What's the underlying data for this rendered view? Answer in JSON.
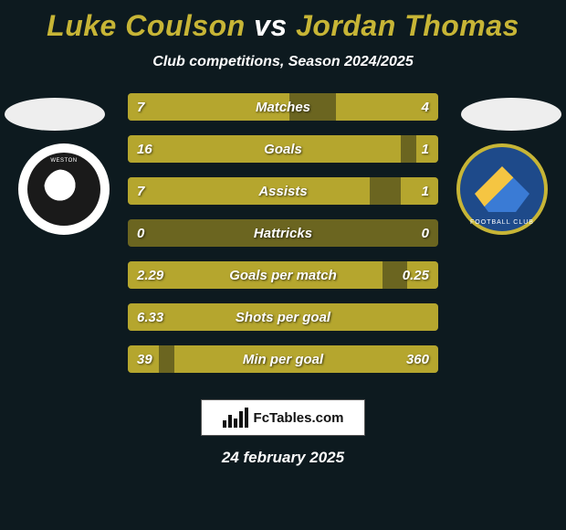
{
  "title": {
    "player1": "Luke Coulson",
    "vs": "vs",
    "player2": "Jordan Thomas"
  },
  "subtitle": "Club competitions, Season 2024/2025",
  "colors": {
    "background": "#0d1a1f",
    "bar_fill": "#b5a62e",
    "bar_track": "#6b6520",
    "accent_text": "#c7b536",
    "text": "#ffffff",
    "badge_left_bg": "#ffffff",
    "badge_left_inner": "#1a1a1a",
    "badge_right_bg": "#1e4a8a",
    "badge_right_border": "#c7b536"
  },
  "stats": [
    {
      "label": "Matches",
      "left_val": "7",
      "right_val": "4",
      "left_pct": 52,
      "right_pct": 33
    },
    {
      "label": "Goals",
      "left_val": "16",
      "right_val": "1",
      "left_pct": 88,
      "right_pct": 7
    },
    {
      "label": "Assists",
      "left_val": "7",
      "right_val": "1",
      "left_pct": 78,
      "right_pct": 12
    },
    {
      "label": "Hattricks",
      "left_val": "0",
      "right_val": "0",
      "left_pct": 0,
      "right_pct": 0
    },
    {
      "label": "Goals per match",
      "left_val": "2.29",
      "right_val": "0.25",
      "left_pct": 82,
      "right_pct": 10
    },
    {
      "label": "Shots per goal",
      "left_val": "6.33",
      "right_val": "",
      "left_pct": 100,
      "right_pct": 0
    },
    {
      "label": "Min per goal",
      "left_val": "39",
      "right_val": "360",
      "left_pct": 10,
      "right_pct": 85
    }
  ],
  "footer_brand": "FcTables.com",
  "date": "24 february 2025"
}
